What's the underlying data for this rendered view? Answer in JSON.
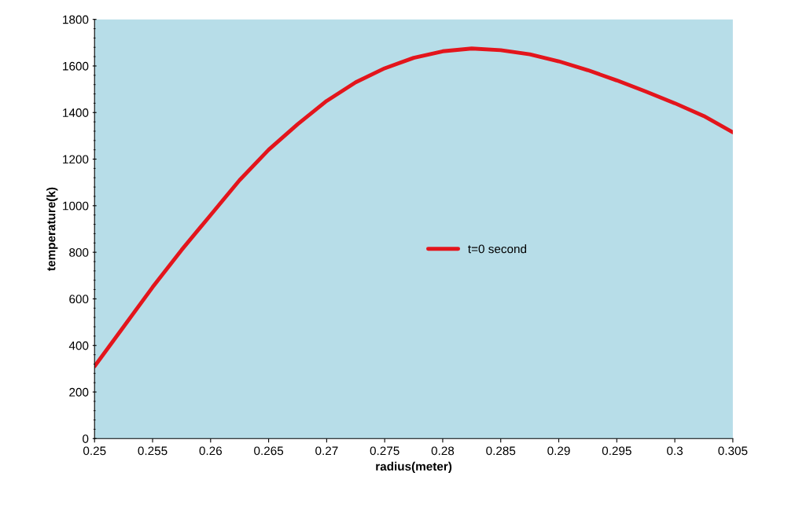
{
  "chart_data": {
    "type": "line",
    "xlabel": "radius(meter)",
    "ylabel": "temperature(k)",
    "x": [
      0.25,
      0.2525,
      0.255,
      0.2575,
      0.26,
      0.2625,
      0.265,
      0.2675,
      0.27,
      0.2725,
      0.275,
      0.2775,
      0.28,
      0.2825,
      0.285,
      0.2875,
      0.29,
      0.2925,
      0.295,
      0.2975,
      0.3,
      0.3025,
      0.305
    ],
    "series": [
      {
        "name": "t=0 second",
        "color": "#e3151c",
        "values": [
          310,
          480,
          650,
          810,
          960,
          1110,
          1240,
          1350,
          1450,
          1530,
          1590,
          1635,
          1663,
          1675,
          1668,
          1650,
          1620,
          1582,
          1538,
          1490,
          1440,
          1385,
          1315
        ]
      }
    ],
    "xlim": [
      0.25,
      0.305
    ],
    "xticks": [
      0.25,
      0.255,
      0.26,
      0.265,
      0.27,
      0.275,
      0.28,
      0.285,
      0.29,
      0.295,
      0.3,
      0.305
    ],
    "ylim": [
      0,
      1800
    ],
    "yticks": [
      0,
      200,
      400,
      600,
      800,
      1000,
      1200,
      1400,
      1600,
      1800
    ],
    "grid": false,
    "legend": "center",
    "marker": "none",
    "line_style": "solid"
  }
}
